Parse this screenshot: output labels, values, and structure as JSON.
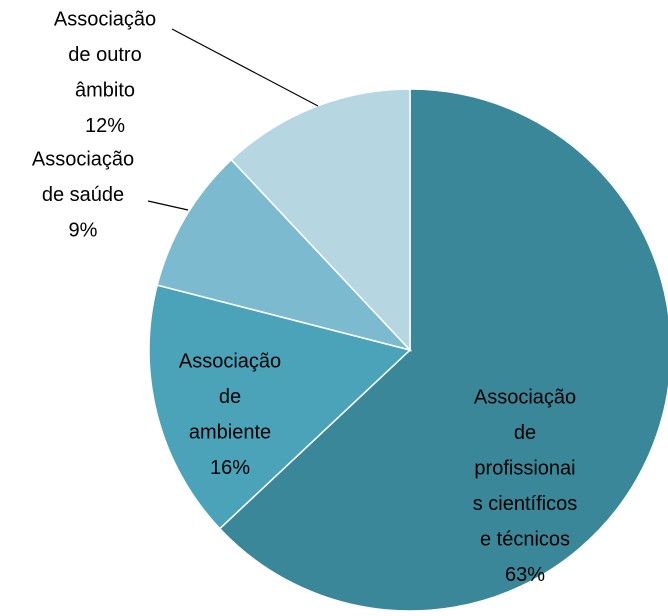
{
  "chart_data": {
    "type": "pie",
    "categories": [
      "Associação de profissionais científicos e técnicos",
      "Associação de ambiente",
      "Associação de saúde",
      "Associação de outro âmbito"
    ],
    "values": [
      63,
      16,
      9,
      12
    ],
    "value_labels": [
      "63%",
      "16%",
      "9%",
      "12%"
    ],
    "colors": [
      "#3a8799",
      "#4aa3b8",
      "#7cbad0",
      "#b6d6e2"
    ]
  }
}
